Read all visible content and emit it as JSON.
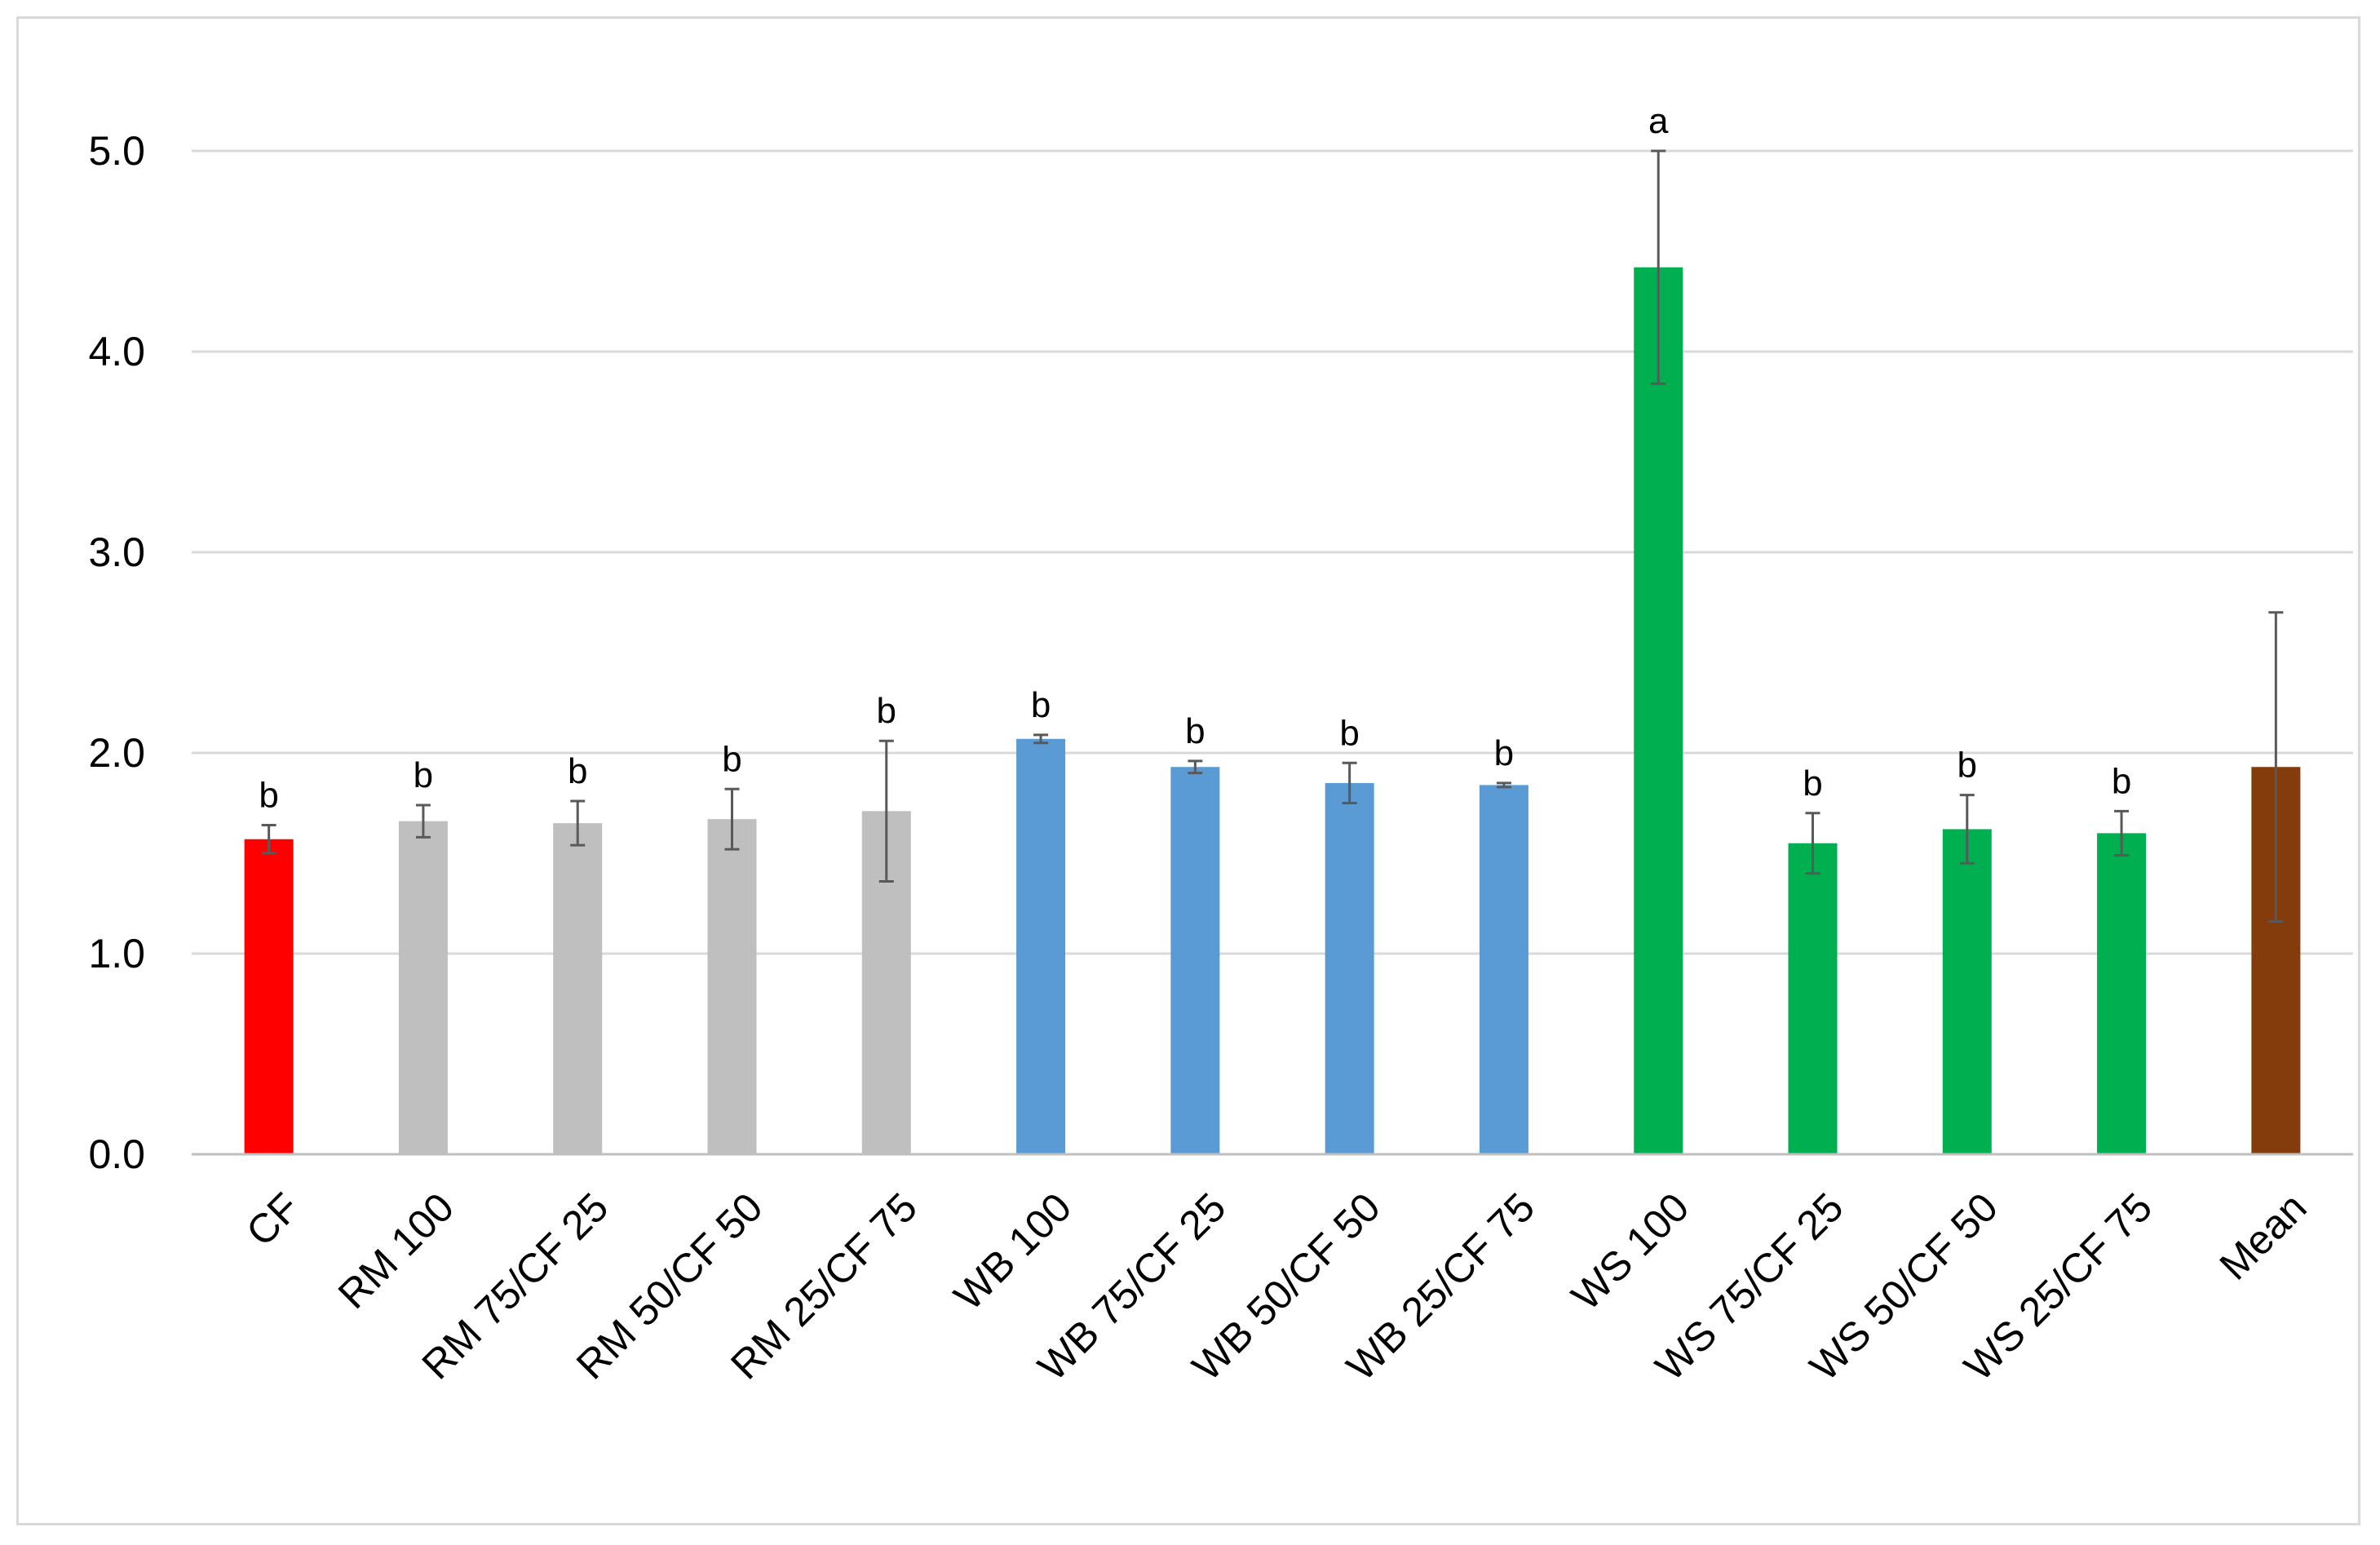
{
  "chart_data": {
    "type": "bar",
    "title": "",
    "xlabel": "",
    "ylabel": "",
    "ylim": [
      0,
      5
    ],
    "yticks": [
      "0.0",
      "1.0",
      "2.0",
      "3.0",
      "4.0",
      "5.0"
    ],
    "grid": true,
    "legend": "none",
    "categories": [
      "CF",
      "RM 100",
      "RM 75/CF 25",
      "RM 50/CF 50",
      "RM 25/CF 75",
      "WB 100",
      "WB 75/CF 25",
      "WB 50/CF 50",
      "WB 25/CF 75",
      "WS 100",
      "WS 75/CF 25",
      "WS 50/CF 50",
      "WS 25/CF 75",
      "Mean"
    ],
    "values": [
      1.57,
      1.66,
      1.65,
      1.67,
      1.71,
      2.07,
      1.93,
      1.85,
      1.84,
      4.42,
      1.55,
      1.62,
      1.6,
      1.93
    ],
    "errors": [
      0.07,
      0.08,
      0.11,
      0.15,
      0.35,
      0.02,
      0.03,
      0.1,
      0.01,
      0.58,
      0.15,
      0.17,
      0.11,
      0.77
    ],
    "significance": [
      "b",
      "b",
      "b",
      "b",
      "b",
      "b",
      "b",
      "b",
      "b",
      "a",
      "b",
      "b",
      "b",
      ""
    ],
    "colors": [
      "#ff0000",
      "#bfbfbf",
      "#bfbfbf",
      "#bfbfbf",
      "#bfbfbf",
      "#5b9bd5",
      "#5b9bd5",
      "#5b9bd5",
      "#5b9bd5",
      "#00b050",
      "#00b050",
      "#00b050",
      "#00b050",
      "#843c0c"
    ]
  }
}
